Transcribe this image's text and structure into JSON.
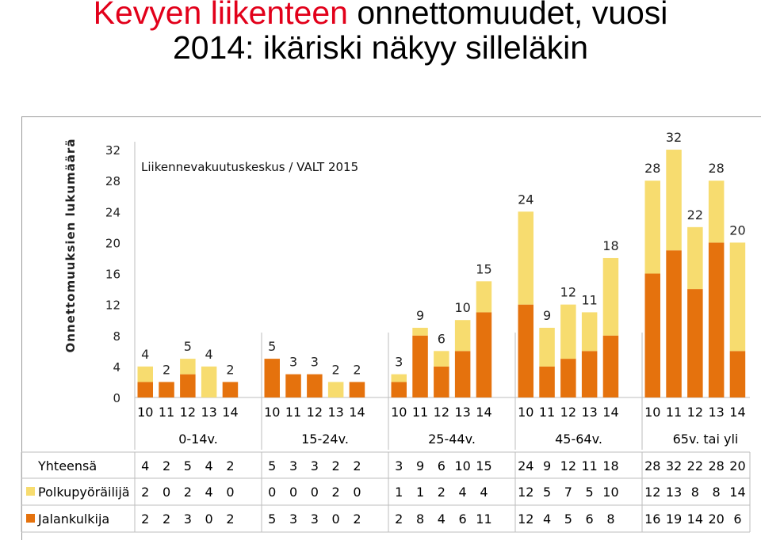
{
  "title": {
    "part1": "Kevyen liikenteen",
    "part2": " onnettomuudet, vuosi",
    "line2": "2014: ikäriski näkyy silleläkin"
  },
  "colors": {
    "title_red": "#e2001a",
    "pedestrian": "#e5720d",
    "cyclist": "#f7dc6f"
  },
  "chart_data": {
    "type": "bar",
    "stacked": true,
    "source_note": "Liikennevakuutuskeskus / VALT 2015",
    "ylabel": "Onnettomuuksien lukumäärä",
    "ylim": [
      0,
      32
    ],
    "yticks": [
      "0",
      "4",
      "8",
      "12",
      "16",
      "20",
      "24",
      "28",
      "32"
    ],
    "grid": false,
    "groups": [
      {
        "label": "0-14v.",
        "years": [
          "10",
          "11",
          "12",
          "13",
          "14"
        ]
      },
      {
        "label": "15-24v.",
        "years": [
          "10",
          "11",
          "12",
          "13",
          "14"
        ]
      },
      {
        "label": "25-44v.",
        "years": [
          "10",
          "11",
          "12",
          "13",
          "14"
        ]
      },
      {
        "label": "45-64v.",
        "years": [
          "10",
          "11",
          "12",
          "13",
          "14"
        ]
      },
      {
        "label": "65v. tai yli",
        "years": [
          "10",
          "11",
          "12",
          "13",
          "14"
        ]
      }
    ],
    "totals_label": "Yhteensä",
    "totals": [
      4,
      2,
      5,
      4,
      2,
      5,
      3,
      3,
      2,
      2,
      3,
      9,
      6,
      10,
      15,
      24,
      9,
      12,
      11,
      18,
      28,
      32,
      22,
      28,
      20
    ],
    "series": [
      {
        "name": "Polkupyöräilijä",
        "color": "#f7dc6f",
        "values": [
          2,
          0,
          2,
          4,
          0,
          0,
          0,
          0,
          2,
          0,
          1,
          1,
          2,
          4,
          4,
          12,
          5,
          7,
          5,
          10,
          12,
          13,
          8,
          8,
          14
        ]
      },
      {
        "name": "Jalankulkija",
        "color": "#e5720d",
        "values": [
          2,
          2,
          3,
          0,
          2,
          5,
          3,
          3,
          0,
          2,
          2,
          8,
          4,
          6,
          11,
          12,
          4,
          5,
          6,
          8,
          16,
          19,
          14,
          20,
          6
        ]
      }
    ]
  }
}
